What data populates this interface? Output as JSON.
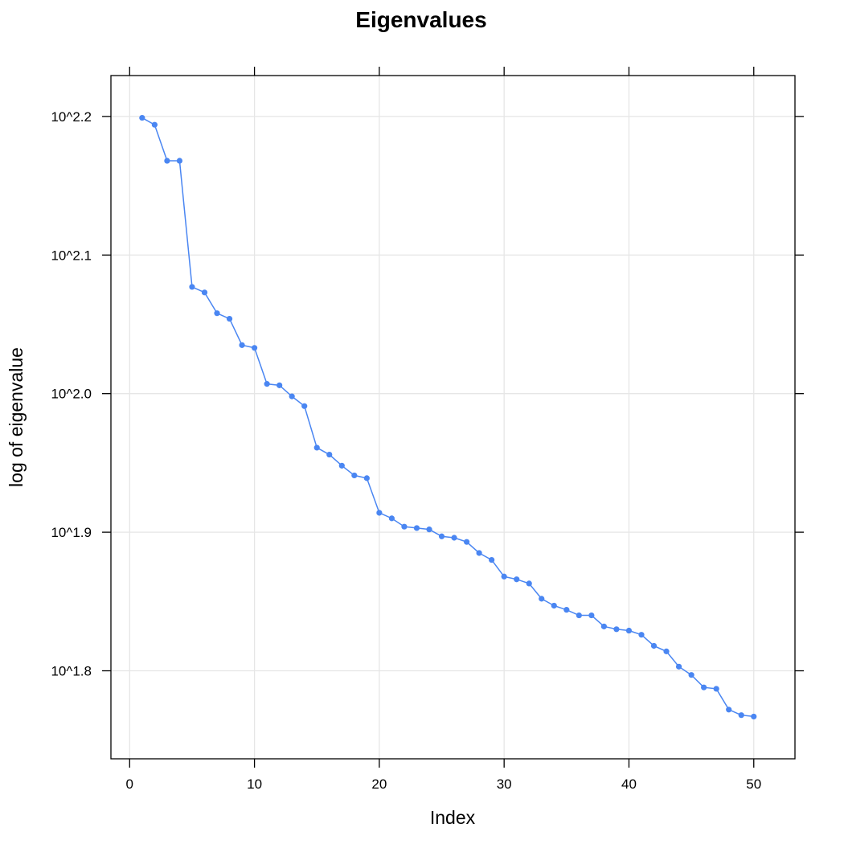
{
  "chart_data": {
    "type": "line",
    "title": "Eigenvalues",
    "xlabel": "Index",
    "ylabel": "log of eigenvalue",
    "xlim": [
      -1.5,
      53.3
    ],
    "ylim": [
      1.7365,
      2.2295
    ],
    "x_ticks": [
      0,
      10,
      20,
      30,
      40,
      50
    ],
    "x_tick_labels": [
      "0",
      "10",
      "20",
      "30",
      "40",
      "50"
    ],
    "y_ticks": [
      1.8,
      1.9,
      2.0,
      2.1,
      2.2
    ],
    "y_tick_labels": [
      "10^1.8",
      "10^1.9",
      "10^2.0",
      "10^2.1",
      "10^2.2"
    ],
    "y_scale": "log10",
    "grid": true,
    "series": [
      {
        "color": "#4a86f2",
        "x": [
          1,
          2,
          3,
          4,
          5,
          6,
          7,
          8,
          9,
          10,
          11,
          12,
          13,
          14,
          15,
          16,
          17,
          18,
          19,
          20,
          21,
          22,
          23,
          24,
          25,
          26,
          27,
          28,
          29,
          30,
          31,
          32,
          33,
          34,
          35,
          36,
          37,
          38,
          39,
          40,
          41,
          42,
          43,
          44,
          45,
          46,
          47,
          48,
          49,
          50
        ],
        "y": [
          2.199,
          2.194,
          2.168,
          2.168,
          2.077,
          2.073,
          2.058,
          2.054,
          2.035,
          2.033,
          2.007,
          2.006,
          1.998,
          1.991,
          1.961,
          1.956,
          1.948,
          1.941,
          1.939,
          1.914,
          1.91,
          1.904,
          1.903,
          1.902,
          1.897,
          1.896,
          1.893,
          1.885,
          1.88,
          1.868,
          1.866,
          1.863,
          1.852,
          1.847,
          1.844,
          1.84,
          1.84,
          1.832,
          1.83,
          1.829,
          1.826,
          1.818,
          1.814,
          1.803,
          1.797,
          1.788,
          1.787,
          1.772,
          1.768,
          1.767
        ]
      }
    ]
  }
}
